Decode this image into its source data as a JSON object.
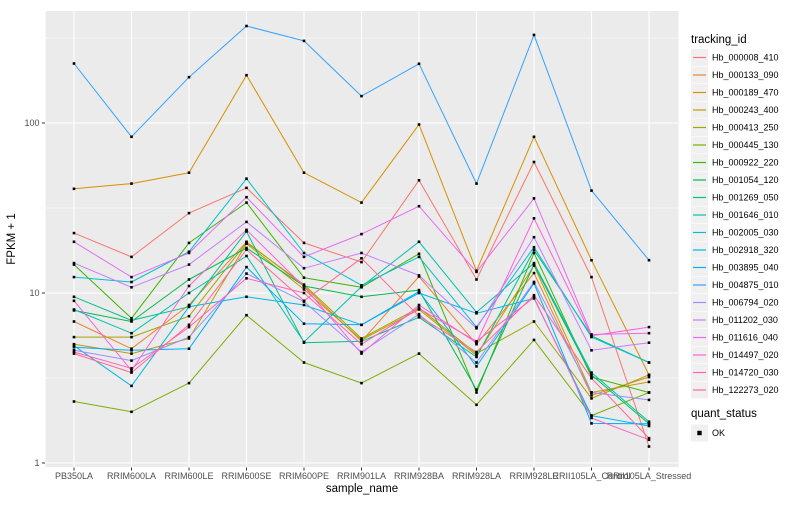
{
  "legend": {
    "color_title": "tracking_id",
    "shape_title": "quant_status",
    "shape_label": "OK"
  },
  "chart_data": {
    "type": "line",
    "title": "",
    "xlabel": "sample_name",
    "ylabel": "FPKM + 1",
    "yscale": "log10",
    "ylim": [
      0.95,
      458
    ],
    "y_major_ticks": [
      1,
      10,
      100
    ],
    "y_tick_labels": [
      "1",
      "10",
      "100"
    ],
    "y_minor_ticks": [
      3.162,
      31.62,
      316.2
    ],
    "grid": true,
    "panel_bg": "#EBEBEB",
    "grid_color": "#FFFFFF",
    "point_shape": "filled-black-square",
    "legend_position": "right",
    "categories": [
      "PB350LA",
      "RRIM600LA",
      "RRIM600LE",
      "RRIM600SE",
      "RRIM600PE",
      "RRIM901LA",
      "RRIM928BA",
      "RRIM928LA",
      "RRIM928LE",
      "RRII105LA_Control",
      "RRII105LA_Stressed"
    ],
    "series": [
      {
        "name": "Hb_000008_410",
        "color": "#F8766D",
        "values": [
          22.5,
          16.3,
          29.5,
          41.5,
          19.7,
          15.2,
          46,
          12,
          59,
          12.4,
          1.25
        ]
      },
      {
        "name": "Hb_000133_090",
        "color": "#EA8331",
        "values": [
          6.8,
          4.7,
          8.5,
          20,
          11,
          5.2,
          12.5,
          5.0,
          13.1,
          2.5,
          3.2
        ]
      },
      {
        "name": "Hb_000189_470",
        "color": "#D89000",
        "values": [
          41,
          44,
          51,
          191,
          51,
          34,
          98,
          13.5,
          83,
          15.6,
          3.3
        ]
      },
      {
        "name": "Hb_000243_400",
        "color": "#C09B00",
        "values": [
          5.0,
          4.4,
          5.4,
          19.5,
          10.5,
          5.3,
          8.0,
          4.3,
          14.5,
          2.6,
          3.0
        ]
      },
      {
        "name": "Hb_000413_250",
        "color": "#A3A500",
        "values": [
          5.5,
          5.5,
          7.3,
          19.8,
          11.2,
          5.4,
          8.2,
          4.4,
          6.8,
          2.4,
          3.3
        ]
      },
      {
        "name": "Hb_000445_130",
        "color": "#7CAE00",
        "values": [
          2.3,
          2.0,
          2.95,
          7.4,
          3.9,
          2.95,
          4.4,
          2.2,
          5.3,
          1.9,
          2.6
        ]
      },
      {
        "name": "Hb_000922_220",
        "color": "#39B600",
        "values": [
          14.7,
          7.1,
          19.7,
          34,
          12.3,
          10.8,
          17,
          2.6,
          17.2,
          3.2,
          2.6
        ]
      },
      {
        "name": "Hb_001054_120",
        "color": "#00BB4E",
        "values": [
          7.9,
          6.8,
          12,
          18.4,
          11,
          9.5,
          10.4,
          2.7,
          14.7,
          3.3,
          1.7
        ]
      },
      {
        "name": "Hb_001269_050",
        "color": "#00C087",
        "values": [
          9.5,
          6.9,
          8.3,
          23,
          5.1,
          5.2,
          7.2,
          4.2,
          17.9,
          5.6,
          3.9
        ]
      },
      {
        "name": "Hb_001646_010",
        "color": "#00C0B2",
        "values": [
          8.0,
          5.8,
          10,
          16.5,
          5.15,
          10.9,
          20,
          7.7,
          15,
          3.4,
          1.75
        ]
      },
      {
        "name": "Hb_002005_030",
        "color": "#00BFD3",
        "values": [
          12.4,
          11.6,
          17.5,
          47,
          17.2,
          11.1,
          16.3,
          6.3,
          18.6,
          5.5,
          3.9
        ]
      },
      {
        "name": "Hb_002918_320",
        "color": "#00B8E7",
        "values": [
          4.9,
          2.84,
          8.3,
          9.5,
          8.5,
          6.5,
          10,
          7.6,
          9.3,
          1.9,
          1.65
        ]
      },
      {
        "name": "Hb_003895_040",
        "color": "#00ACFC",
        "values": [
          4.8,
          4.6,
          4.7,
          14.2,
          6.6,
          6.5,
          10.2,
          3.7,
          11.4,
          1.71,
          1.7
        ]
      },
      {
        "name": "Hb_004875_010",
        "color": "#35A2FF",
        "values": [
          224,
          83,
          186,
          372,
          304,
          144,
          223,
          44,
          330,
          40,
          15.6
        ]
      },
      {
        "name": "Hb_006794_020",
        "color": "#9590FF",
        "values": [
          4.6,
          4.0,
          5.5,
          13,
          8.9,
          4.5,
          7.5,
          3.9,
          11.6,
          2.6,
          2.35
        ]
      },
      {
        "name": "Hb_011202_030",
        "color": "#C77CFF",
        "values": [
          15,
          10.8,
          14.7,
          26.2,
          14.0,
          17.2,
          12.7,
          6.2,
          21.3,
          4.6,
          5.1
        ]
      },
      {
        "name": "Hb_011616_040",
        "color": "#E76BF3",
        "values": [
          20,
          12.4,
          17.2,
          36.6,
          16.3,
          22.2,
          32.4,
          13.3,
          36,
          5.7,
          5.8
        ]
      },
      {
        "name": "Hb_014497_020",
        "color": "#FA62DB",
        "values": [
          9.0,
          3.5,
          11,
          23.5,
          10.9,
          4.4,
          8.5,
          5.1,
          27.5,
          5.6,
          6.3
        ]
      },
      {
        "name": "Hb_014720_030",
        "color": "#FF62BC",
        "values": [
          4.5,
          3.6,
          6.3,
          12.2,
          10,
          5.0,
          8.1,
          5.2,
          9.4,
          1.84,
          1.37
        ]
      },
      {
        "name": "Hb_122273_020",
        "color": "#FF6A98",
        "values": [
          4.4,
          3.4,
          6.5,
          18,
          9.0,
          16,
          7.3,
          4.5,
          9.7,
          3.15,
          1.4
        ]
      }
    ]
  }
}
